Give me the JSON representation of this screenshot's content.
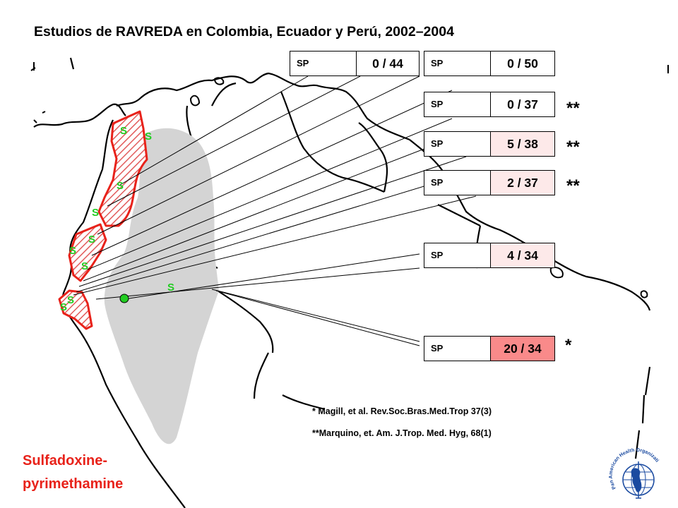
{
  "title": "Estudios de RAVREDA en Colombia, Ecuador y Perú, 2002–2004",
  "colors": {
    "study_region_border": "#e8221a",
    "hatch": "#e25c5c",
    "amazon_region": "#d4d4d4",
    "marker": "#22cc22",
    "value_light": "#fde9e9",
    "value_medium": "#f98a8a"
  },
  "studies": [
    {
      "drug": "SP",
      "result": "0 / 44",
      "stars": "",
      "fill": "#ffffff"
    },
    {
      "drug": "SP",
      "result": "0 / 50",
      "stars": "",
      "fill": "#ffffff"
    },
    {
      "drug": "SP",
      "result": "0 / 37",
      "stars": "**",
      "fill": "#ffffff"
    },
    {
      "drug": "SP",
      "result": "5 / 38",
      "stars": "**",
      "fill": "#fde9e9"
    },
    {
      "drug": "SP",
      "result": "2 / 37",
      "stars": "**",
      "fill": "#fde9e9"
    },
    {
      "drug": "SP",
      "result": "4 / 34",
      "stars": "",
      "fill": "#fde9e9"
    },
    {
      "drug": "SP",
      "result": "20 / 34",
      "stars": "*",
      "fill": "#f98a8a"
    }
  ],
  "map_markers": [
    "S",
    "S",
    "S",
    "S",
    "S",
    "S",
    "S",
    "S",
    "S",
    "S"
  ],
  "references": [
    "* Magill, et al. Rev.Soc.Bras.Med.Trop 37(3)",
    "**Marquino, et. Am. J.Trop. Med. Hyg,  68(1)"
  ],
  "drug_name": [
    "Sulfadoxine-",
    "pyrimethamine"
  ],
  "logo": {
    "icon": "pan-american-health-organization-logo",
    "text": "Pan American Health Organization"
  }
}
